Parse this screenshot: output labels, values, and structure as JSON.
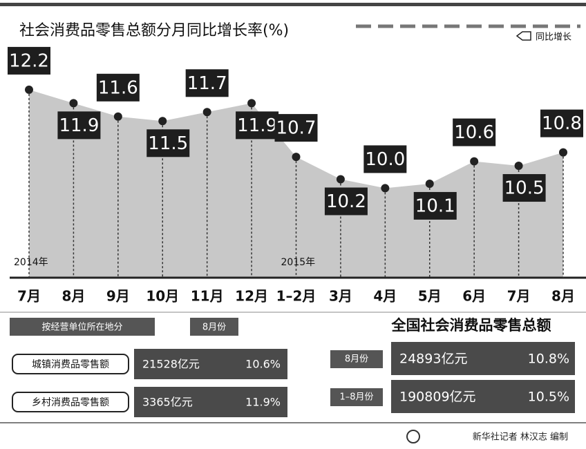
{
  "chart_data": {
    "type": "line",
    "title": "社会消费品零售总额分月同比增长率(%)",
    "legend": "同比增长",
    "categories": [
      "7月",
      "8月",
      "9月",
      "10月",
      "11月",
      "12月",
      "1–2月",
      "3月",
      "4月",
      "5月",
      "6月",
      "7月",
      "8月"
    ],
    "values": [
      12.2,
      11.9,
      11.6,
      11.5,
      11.7,
      11.9,
      10.7,
      10.2,
      10.0,
      10.1,
      10.6,
      10.5,
      10.8
    ],
    "value_labels": [
      "12.2",
      "11.9",
      "11.6",
      "11.5",
      "11.7",
      "11.9",
      "10.7",
      "10.2",
      "10.0",
      "10.1",
      "10.6",
      "10.5",
      "10.8"
    ],
    "annotations": [
      {
        "category": 0,
        "text": "2014年"
      },
      {
        "category": 6,
        "text": "2015年"
      }
    ],
    "ylim": [
      8,
      12.6
    ],
    "color": "#c8c8c8"
  },
  "breakdown": {
    "header": [
      "按经营单位所在地分",
      "8月份"
    ],
    "rows": [
      [
        "城镇消费品零售额",
        "21528亿元",
        "10.6%"
      ],
      [
        "乡村消费品零售额",
        "3365亿元",
        "11.9%"
      ]
    ]
  },
  "national": {
    "title": "全国社会消费品零售总额",
    "rows": [
      [
        "8月份",
        "24893亿元",
        "10.8%"
      ],
      [
        "1–8月份",
        "190809亿元",
        "10.5%"
      ]
    ]
  },
  "credit": "新华社记者 林汉志 编制"
}
